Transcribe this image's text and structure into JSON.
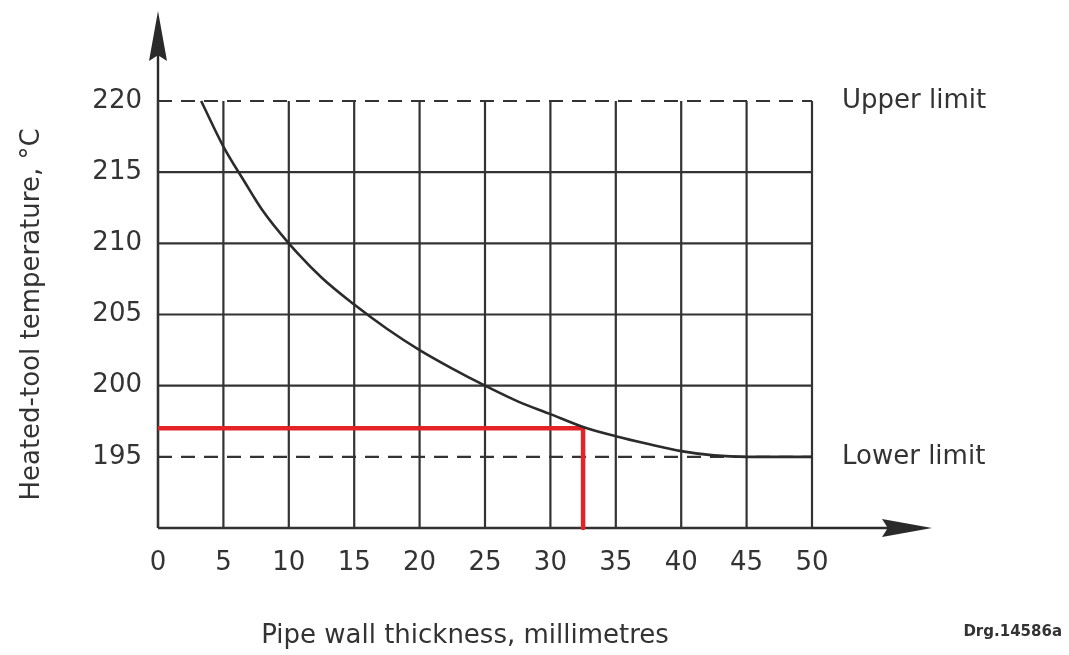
{
  "chart_data": {
    "type": "line",
    "xlabel": "Pipe wall thickness, millimetres",
    "ylabel": "Heated-tool temperature, °C",
    "annotations": [
      "Drg.14586a"
    ],
    "xlim": [
      0,
      50
    ],
    "ylim": [
      190,
      220
    ],
    "xticks": [
      0,
      5,
      10,
      15,
      20,
      25,
      30,
      35,
      40,
      45,
      50
    ],
    "yticks": [
      195,
      200,
      205,
      210,
      215,
      220
    ],
    "grid": true,
    "ref_lines": [
      {
        "axis": "y",
        "value": 220,
        "label": "Upper limit",
        "line_style": "dashed"
      },
      {
        "axis": "y",
        "value": 195,
        "label": "Lower limit",
        "line_style": "dashed"
      }
    ],
    "series": [
      {
        "color": "#2b2b2b",
        "x": [
          3.3,
          5,
          6.5,
          8,
          10,
          12.5,
          15,
          17.5,
          20,
          22.5,
          25,
          27.5,
          30,
          32.5,
          35,
          37.5,
          40,
          42.5,
          45,
          47.5,
          50
        ],
        "values": [
          220,
          216.8,
          214.5,
          212.3,
          210,
          207.6,
          205.7,
          204,
          202.5,
          201.2,
          200,
          198.9,
          198,
          197.1,
          196.45,
          195.9,
          195.4,
          195.1,
          195,
          195,
          195
        ]
      },
      {
        "color": "#e52228",
        "x": [
          0,
          32.5,
          32.5
        ],
        "values": [
          197,
          197,
          190
        ]
      }
    ]
  }
}
